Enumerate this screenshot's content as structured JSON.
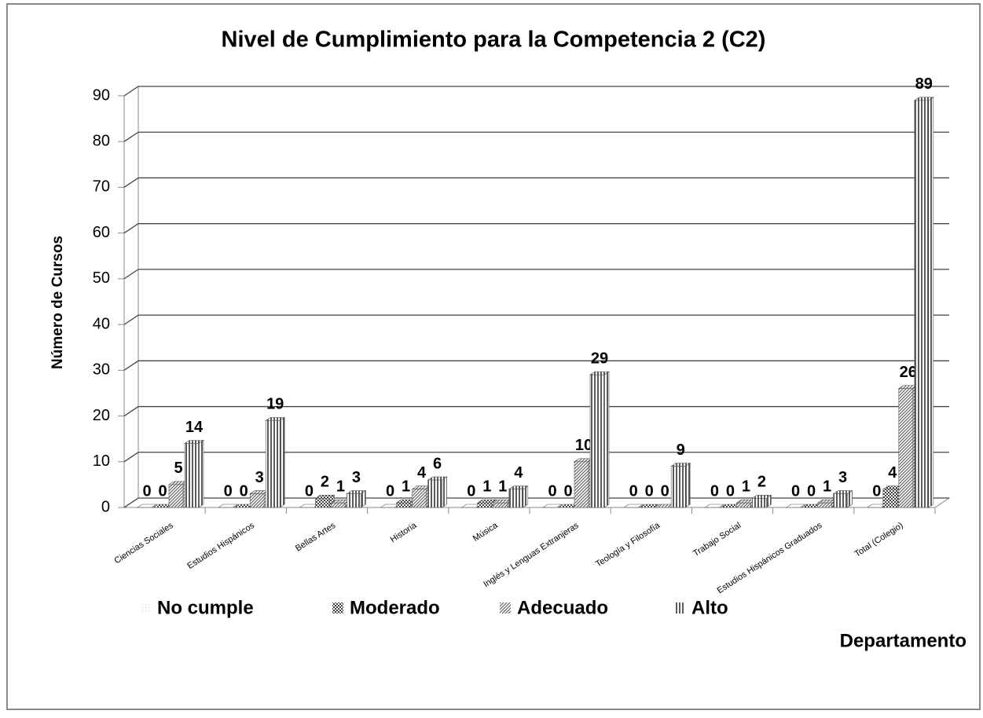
{
  "chart_data": {
    "type": "bar3d",
    "title": "Nivel de Cumplimiento para la Competencia 2 (C2)",
    "y_label": "Número de Cursos",
    "x_label": "Departamento",
    "categories": [
      "Ciencias Sociales",
      "Estudios Hispánicos",
      "Bellas Artes",
      "Historia",
      "Música",
      "Inglés y Lenguas Extranjeras",
      "Teología y Filosofía",
      "Trabajo Social",
      "Estudios Hispánicos Graduados",
      "Total (Colegio)"
    ],
    "series": [
      {
        "name": "No cumple",
        "color": "#bbbbbb",
        "pattern": "dots",
        "values": [
          0,
          0,
          0,
          0,
          0,
          0,
          0,
          0,
          0,
          0
        ]
      },
      {
        "name": "Moderado",
        "color": "#444444",
        "pattern": "checker",
        "values": [
          0,
          0,
          2,
          1,
          1,
          0,
          0,
          0,
          0,
          4
        ]
      },
      {
        "name": "Adecuado",
        "color": "#666666",
        "pattern": "diagonal",
        "values": [
          5,
          3,
          1,
          4,
          1,
          10,
          0,
          1,
          1,
          26
        ]
      },
      {
        "name": "Alto",
        "color": "#333333",
        "pattern": "vertical",
        "values": [
          14,
          19,
          3,
          6,
          4,
          29,
          9,
          2,
          3,
          89
        ]
      }
    ],
    "ylim": [
      0,
      90
    ],
    "yticks": [
      0,
      10,
      20,
      30,
      40,
      50,
      60,
      70,
      80,
      90
    ],
    "grid": true,
    "legend": "bottom"
  }
}
